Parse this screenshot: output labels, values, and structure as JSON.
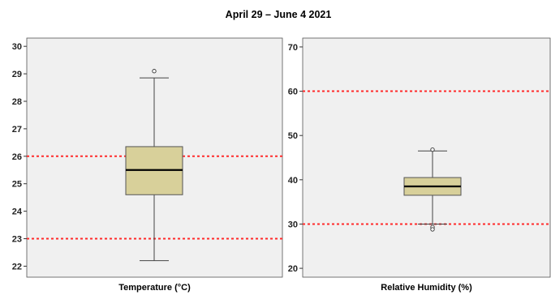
{
  "chart_data": {
    "title": "April 29 – June 4 2021",
    "type": "boxplot",
    "panels": [
      {
        "xlabel": "Temperature  (°C)",
        "ylim": [
          21.6,
          30.3
        ],
        "yticks": [
          22,
          23,
          24,
          25,
          26,
          27,
          28,
          29,
          30
        ],
        "box": {
          "whisker_low": 22.2,
          "q1": 24.6,
          "median": 25.5,
          "q3": 26.35,
          "whisker_high": 28.85
        },
        "outliers": [
          29.1
        ],
        "reference_lines": [
          26,
          23
        ],
        "colors": {
          "box_fill": "#d8d09a",
          "reference_line": "#ff2a2a",
          "plot_bg": "#f0f0f0"
        }
      },
      {
        "xlabel": "Relative Humidity (%)",
        "ylim": [
          18.0,
          72.0
        ],
        "yticks": [
          20,
          30,
          40,
          50,
          60,
          70
        ],
        "box": {
          "whisker_low": 30.0,
          "q1": 36.5,
          "median": 38.5,
          "q3": 40.5,
          "whisker_high": 46.5
        },
        "outliers": [
          46.8,
          29.3,
          28.8
        ],
        "reference_lines": [
          60,
          30
        ],
        "colors": {
          "box_fill": "#d8d09a",
          "reference_line": "#ff2a2a",
          "plot_bg": "#f0f0f0"
        }
      }
    ]
  }
}
